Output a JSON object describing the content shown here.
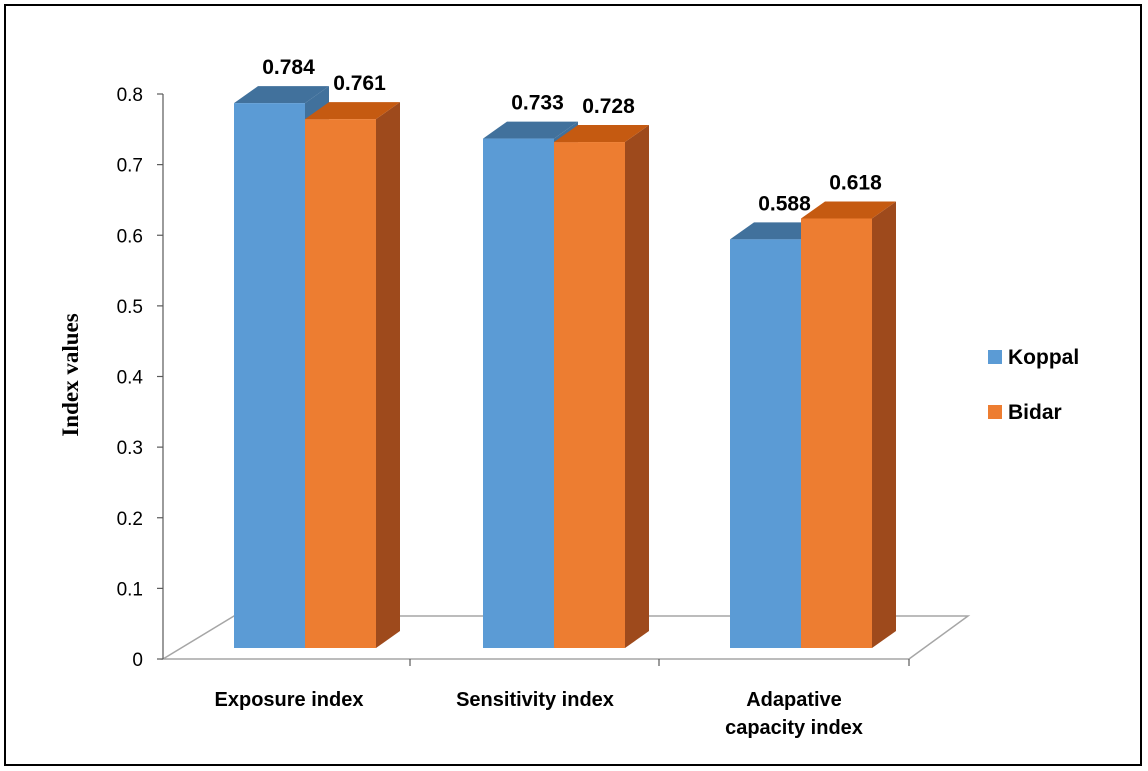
{
  "chart_data": {
    "type": "bar",
    "title": "",
    "xlabel": "",
    "ylabel": "Index values",
    "ylim": [
      0,
      0.8
    ],
    "yticks": [
      "0",
      "0.1",
      "0.2",
      "0.3",
      "0.4",
      "0.5",
      "0.6",
      "0.7",
      "0.8"
    ],
    "categories": [
      [
        "Exposure index"
      ],
      [
        "Sensitivity index"
      ],
      [
        "Adapative",
        "capacity index"
      ]
    ],
    "series": [
      {
        "name": "Koppal",
        "values": [
          0.784,
          0.733,
          0.588
        ],
        "labels": [
          "0.784",
          "0.733",
          "0.588"
        ],
        "color": "#5B9BD5",
        "top_color": "#41719C",
        "side_color": "#41719C"
      },
      {
        "name": "Bidar",
        "values": [
          0.761,
          0.728,
          0.618
        ],
        "labels": [
          "0.761",
          "0.728",
          "0.618"
        ],
        "color": "#ED7D31",
        "top_color": "#C55A11",
        "side_color": "#9E4A1C"
      }
    ],
    "legend_position": "right",
    "grid": false,
    "style": "3d-clustered-column"
  }
}
